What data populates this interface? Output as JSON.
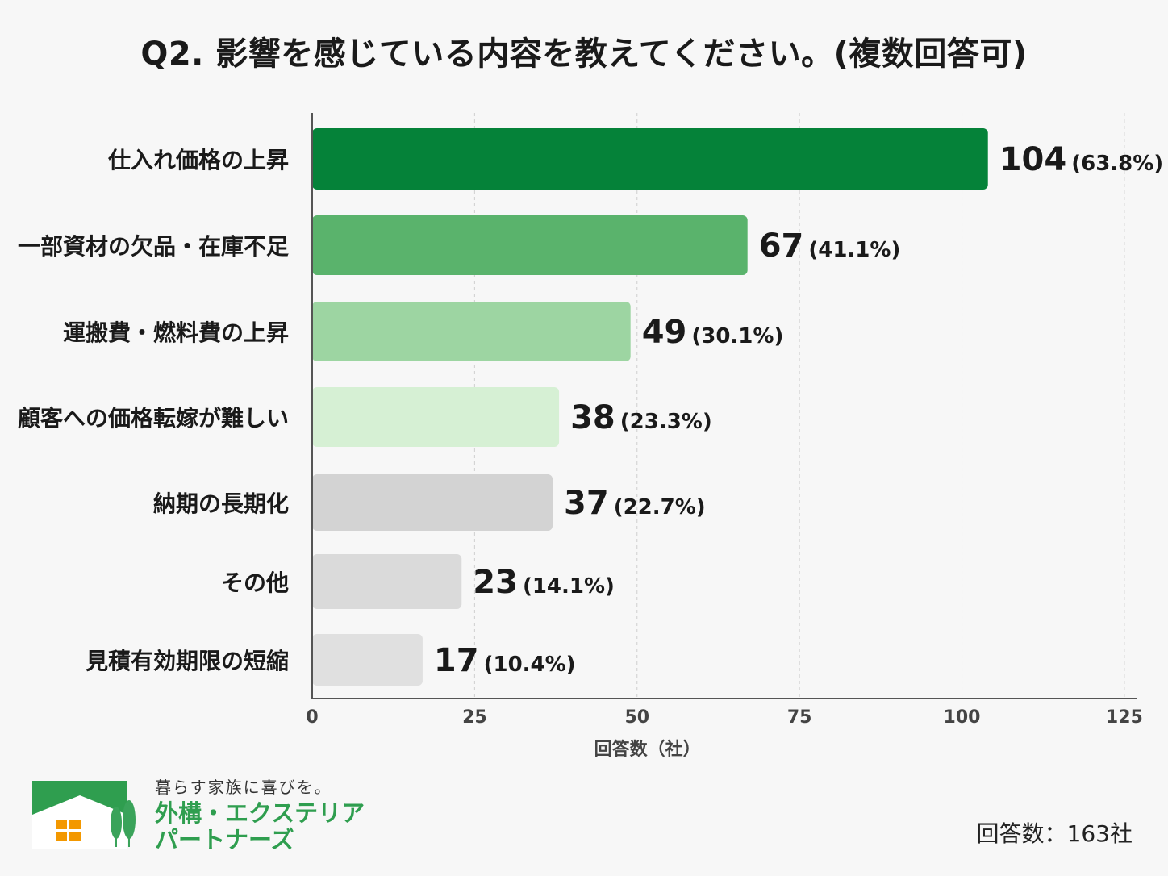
{
  "title": "Q2. 影響を感じている内容を教えてください。(複数回答可)",
  "chart_data": {
    "type": "bar",
    "orientation": "horizontal",
    "categories": [
      "仕入れ価格の上昇",
      "一部資材の欠品・在庫不足",
      "運搬費・燃料費の上昇",
      "顧客への価格転嫁が難しい",
      "納期の長期化",
      "その他",
      "見積有効期限の短縮"
    ],
    "values": [
      104,
      67,
      49,
      38,
      37,
      23,
      17
    ],
    "percent_labels": [
      "(63.8%)",
      "(41.1%)",
      "(30.1%)",
      "(23.3%)",
      "(22.7%)",
      "(14.1%)",
      "(10.4%)"
    ],
    "colors": [
      "#058239",
      "#5ab36c",
      "#9dd5a2",
      "#d6f0d4",
      "#d3d3d3",
      "#dadada",
      "#e0e0e0"
    ],
    "xlabel": "回答数（社）",
    "xlim": [
      0,
      127
    ],
    "xticks": [
      0,
      25,
      50,
      75,
      100,
      125
    ],
    "grid": "vertical-dashed",
    "legend": "none"
  },
  "footer": {
    "tagline": "暮らす家族に喜びを。",
    "brand_line1": "外構・エクステリア",
    "brand_line2": "パートナーズ",
    "total": "回答数：163社",
    "brand_color": "#2f9e4f"
  }
}
